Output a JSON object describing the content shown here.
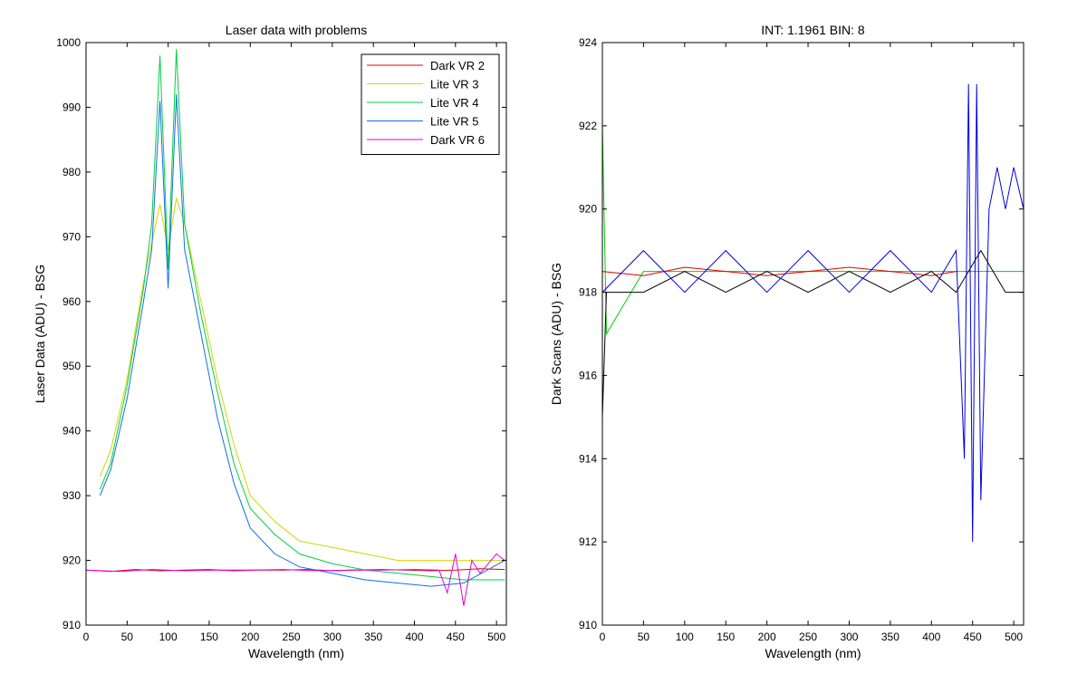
{
  "chart_data": [
    {
      "type": "line",
      "title": "Laser data with problems",
      "xlabel": "Wavelength (nm)",
      "ylabel": "Laser Data (ADU) - BSG",
      "xlim": [
        0,
        512
      ],
      "ylim": [
        910,
        1000
      ],
      "xticks": [
        0,
        50,
        100,
        150,
        200,
        250,
        300,
        350,
        400,
        450,
        500
      ],
      "yticks": [
        910,
        920,
        930,
        940,
        950,
        960,
        970,
        980,
        990,
        1000
      ],
      "grid": false,
      "legend_position": "top-right",
      "series": [
        {
          "name": "Dark VR 2",
          "color": "#e00000",
          "x": [
            0,
            30,
            60,
            90,
            120,
            150,
            180,
            210,
            240,
            270,
            300,
            330,
            360,
            390,
            420,
            450,
            480,
            510
          ],
          "y": [
            918.5,
            918.3,
            918.6,
            918.4,
            918.5,
            918.6,
            918.4,
            918.5,
            918.5,
            918.6,
            918.4,
            918.5,
            918.6,
            918.5,
            918.4,
            918.5,
            918.7,
            918.6
          ]
        },
        {
          "name": "Lite VR 3",
          "color": "#d4d400",
          "x": [
            17,
            30,
            50,
            70,
            90,
            100,
            110,
            120,
            140,
            160,
            180,
            200,
            230,
            260,
            300,
            340,
            380,
            420,
            460,
            510
          ],
          "y": [
            933,
            937,
            948,
            963,
            975,
            968,
            976,
            972,
            960,
            948,
            938,
            930,
            926,
            923,
            922,
            921,
            920,
            920,
            920,
            920
          ]
        },
        {
          "name": "Lite VR 4",
          "color": "#00d040",
          "x": [
            17,
            30,
            50,
            70,
            80,
            90,
            100,
            110,
            120,
            140,
            160,
            180,
            200,
            230,
            260,
            300,
            340,
            380,
            420,
            460,
            510
          ],
          "y": [
            931,
            935,
            947,
            962,
            972,
            998,
            965,
            999,
            972,
            958,
            946,
            935,
            928,
            924,
            921,
            919.5,
            918.5,
            918,
            917.5,
            917,
            917
          ]
        },
        {
          "name": "Lite VR 5",
          "color": "#1070e0",
          "x": [
            17,
            30,
            50,
            70,
            80,
            90,
            100,
            110,
            120,
            140,
            160,
            180,
            200,
            230,
            260,
            300,
            340,
            380,
            420,
            460,
            510
          ],
          "y": [
            930,
            934,
            945,
            960,
            968,
            991,
            962,
            992,
            968,
            955,
            942,
            932,
            925,
            921,
            919,
            918,
            917,
            916.5,
            916,
            916.5,
            920
          ]
        },
        {
          "name": "Dark VR 6",
          "color": "#e000e0",
          "x": [
            0,
            40,
            80,
            120,
            160,
            200,
            240,
            280,
            320,
            360,
            400,
            430,
            440,
            450,
            460,
            470,
            480,
            500,
            510
          ],
          "y": [
            918.5,
            918.3,
            918.6,
            918.4,
            918.5,
            918.5,
            918.6,
            918.4,
            918.5,
            918.5,
            918.6,
            918.5,
            915,
            921,
            913,
            920,
            918,
            921,
            920
          ]
        }
      ]
    },
    {
      "type": "line",
      "title": "INT: 1.1961    BIN: 8",
      "xlabel": "Wavelength (nm)",
      "ylabel": "Dark Scans (ADU) - BSG",
      "xlim": [
        0,
        512
      ],
      "ylim": [
        910,
        924
      ],
      "xticks": [
        0,
        50,
        100,
        150,
        200,
        250,
        300,
        350,
        400,
        450,
        500
      ],
      "yticks": [
        910,
        912,
        914,
        916,
        918,
        920,
        922,
        924
      ],
      "grid": false,
      "series": [
        {
          "color": "#00d000",
          "x": [
            0,
            5,
            50,
            100,
            150,
            200,
            250,
            300,
            350,
            400,
            430,
            460,
            490,
            512
          ],
          "y": [
            922,
            917,
            918.5,
            918.5,
            918.5,
            918.5,
            918.5,
            918.5,
            918.5,
            918.5,
            918.5,
            918.5,
            918.5,
            918.5
          ]
        },
        {
          "color": "#e00000",
          "x": [
            0,
            50,
            100,
            150,
            200,
            250,
            300,
            350,
            400,
            430
          ],
          "y": [
            918.5,
            918.4,
            918.6,
            918.5,
            918.4,
            918.5,
            918.6,
            918.5,
            918.4,
            918.5
          ]
        },
        {
          "color": "#000000",
          "x": [
            0,
            5,
            50,
            100,
            150,
            200,
            250,
            300,
            350,
            400,
            430,
            460,
            490,
            512
          ],
          "y": [
            915,
            918,
            918,
            918.5,
            918,
            918.5,
            918,
            918.5,
            918,
            918.5,
            918,
            919,
            918,
            918
          ]
        },
        {
          "color": "#0000e0",
          "x": [
            0,
            50,
            100,
            150,
            200,
            250,
            300,
            350,
            400,
            430,
            440,
            445,
            450,
            455,
            460,
            470,
            480,
            490,
            500,
            512
          ],
          "y": [
            918,
            919,
            918,
            919,
            918,
            919,
            918,
            919,
            918,
            919,
            914,
            923,
            912,
            923,
            913,
            920,
            921,
            920,
            921,
            920
          ]
        }
      ]
    }
  ]
}
